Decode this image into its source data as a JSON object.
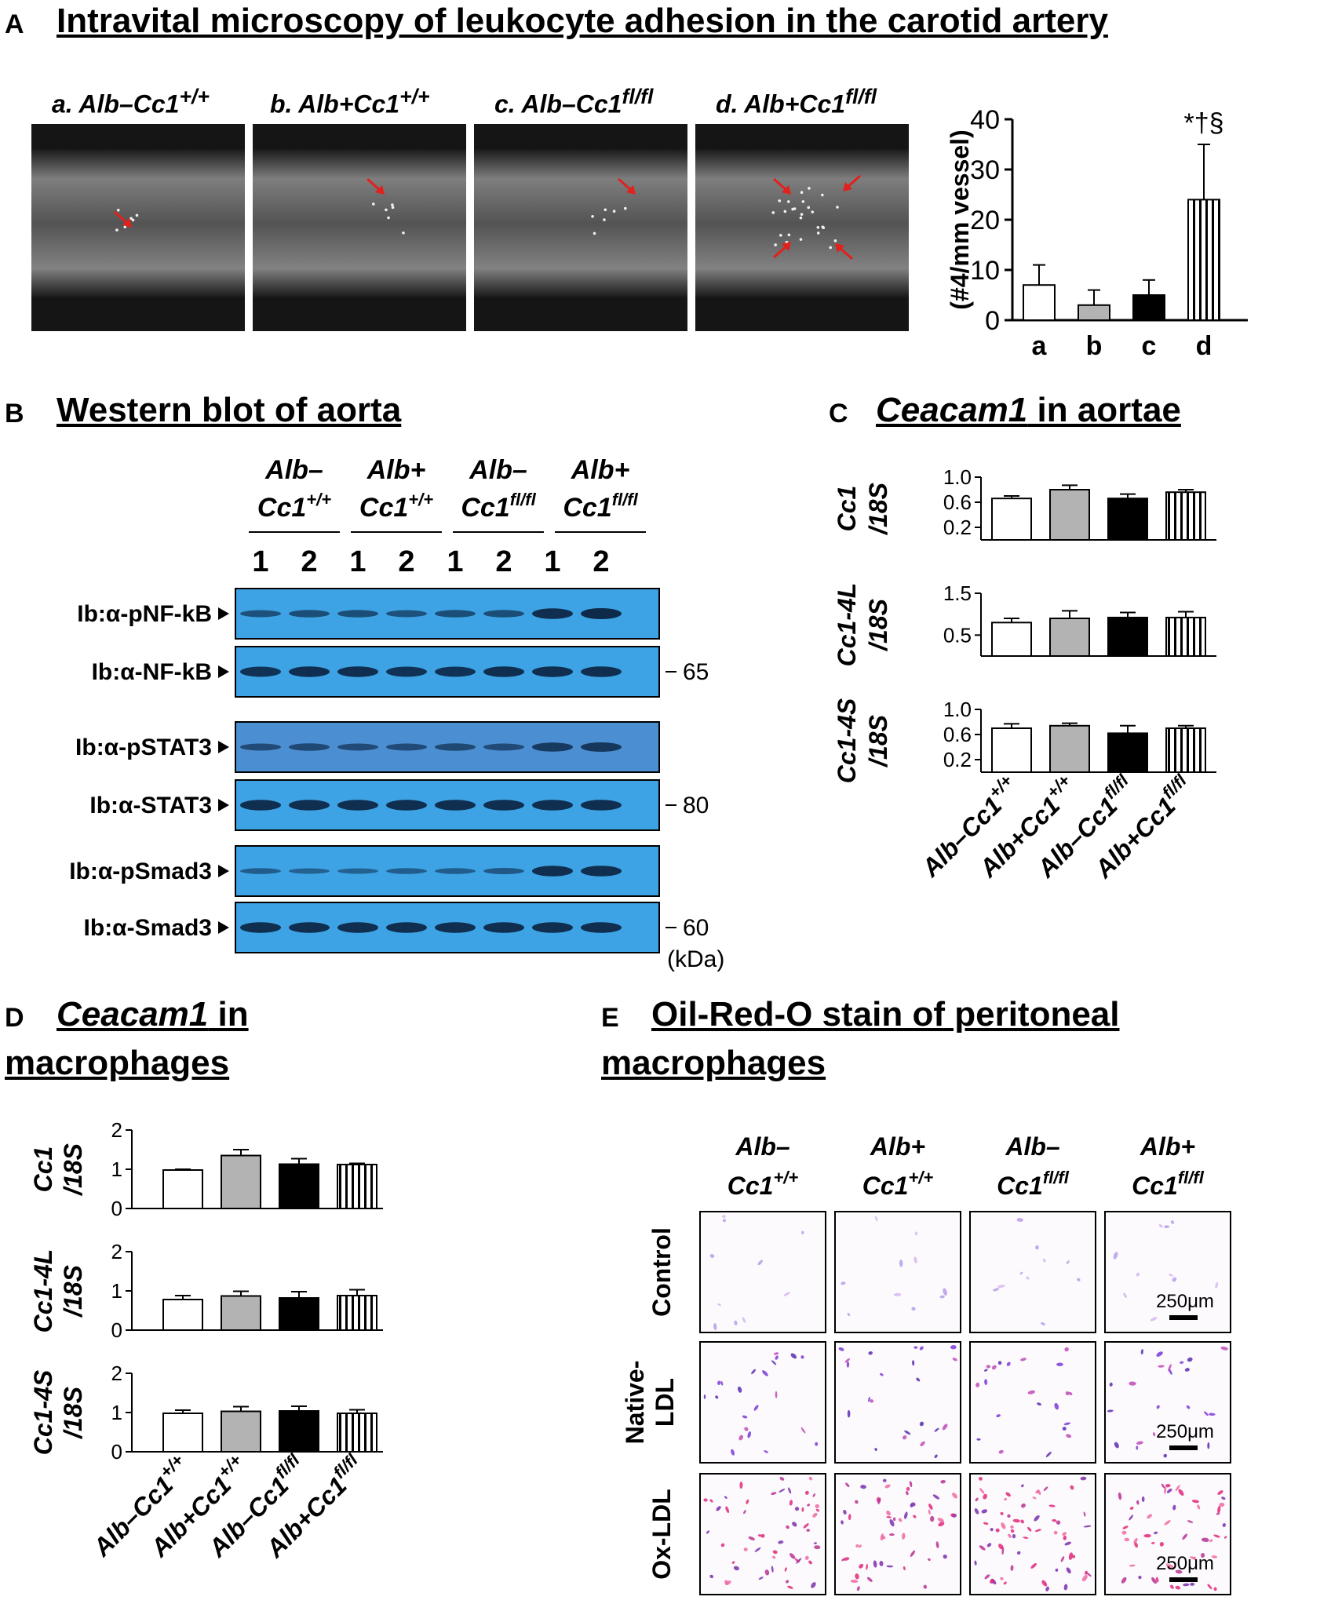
{
  "panelA": {
    "letter": "A",
    "title": "Intravital microscopy of leukocyte adhesion in the carotid artery",
    "images": [
      {
        "prefix": "a. Alb–Cc1",
        "sup": "+/+",
        "arrows": 1
      },
      {
        "prefix": "b. Alb+Cc1",
        "sup": "+/+",
        "arrows": 1
      },
      {
        "prefix": "c. Alb–Cc1",
        "sup": "fl/fl",
        "arrows": 1
      },
      {
        "prefix": "d. Alb+Cc1",
        "sup": "fl/fl",
        "arrows": 4
      }
    ],
    "chart_data": {
      "type": "bar",
      "categories": [
        "a",
        "b",
        "c",
        "d"
      ],
      "values": [
        7,
        3,
        5,
        24
      ],
      "errors": [
        4,
        3,
        3,
        11
      ],
      "ylabel": "(#4/mm vessel)",
      "ylim": [
        0,
        40
      ],
      "yticks": [
        0,
        10,
        20,
        30,
        40
      ],
      "annotation": "*†§",
      "fills": [
        "white",
        "#b3b3b3",
        "black",
        "stripes"
      ]
    }
  },
  "panelB": {
    "letter": "B",
    "title": "Western blot of aorta",
    "groups": [
      {
        "line1": "Alb–",
        "line2": "Cc1",
        "sup": "+/+"
      },
      {
        "line1": "Alb+",
        "line2": "Cc1",
        "sup": "+/+"
      },
      {
        "line1": "Alb–",
        "line2": "Cc1",
        "sup": "fl/fl"
      },
      {
        "line1": "Alb+",
        "line2": "Cc1",
        "sup": "fl/fl"
      }
    ],
    "lanes": [
      "1",
      "2",
      "1",
      "2",
      "1",
      "2",
      "1",
      "2"
    ],
    "rows": [
      {
        "label": "Ib:α-pNF-kB",
        "mw": "",
        "intensities": [
          0.5,
          0.55,
          0.55,
          0.5,
          0.55,
          0.55,
          0.95,
          1.0
        ]
      },
      {
        "label": "Ib:α-NF-kB",
        "mw": "65",
        "intensities": [
          0.9,
          0.95,
          0.95,
          0.9,
          0.9,
          0.95,
          0.95,
          0.95
        ]
      },
      {
        "label": "Ib:α-pSTAT3",
        "mw": "",
        "intensities": [
          0.5,
          0.55,
          0.5,
          0.5,
          0.55,
          0.5,
          0.75,
          0.8
        ]
      },
      {
        "label": "Ib:α-STAT3",
        "mw": "80",
        "intensities": [
          0.95,
          0.95,
          0.95,
          0.95,
          0.95,
          0.95,
          0.95,
          0.95
        ]
      },
      {
        "label": "Ib:α-pSmad3",
        "mw": "",
        "intensities": [
          0.35,
          0.3,
          0.3,
          0.35,
          0.35,
          0.4,
          0.95,
          0.95
        ]
      },
      {
        "label": "Ib:α-Smad3",
        "mw": "60",
        "intensities": [
          0.95,
          0.95,
          0.95,
          0.95,
          0.95,
          0.95,
          0.95,
          0.95
        ]
      }
    ],
    "mw_unit": "(kDa)"
  },
  "panelC": {
    "letter": "C",
    "title_italic": "Ceacam1",
    "title_rest": " in aortae",
    "chart_data": [
      {
        "type": "bar",
        "ylabel_line1": "Cc1",
        "ylabel_line2": "/18S",
        "yticks": [
          0.2,
          0.6,
          1.0
        ],
        "tick_labels": [
          "0.2",
          "0.6",
          "1.0"
        ],
        "ylim": [
          0,
          1.0
        ],
        "values": [
          0.66,
          0.8,
          0.66,
          0.76
        ],
        "errors": [
          0.04,
          0.07,
          0.07,
          0.04
        ]
      },
      {
        "type": "bar",
        "ylabel_line1": "Cc1-4L",
        "ylabel_line2": "/18S",
        "yticks": [
          0.5,
          1.5
        ],
        "tick_labels": [
          "0.5",
          "1.5"
        ],
        "ylim": [
          0,
          1.5
        ],
        "values": [
          0.8,
          0.9,
          0.92,
          0.92
        ],
        "errors": [
          0.1,
          0.18,
          0.12,
          0.14
        ]
      },
      {
        "type": "bar",
        "ylabel_line1": "Cc1-4S",
        "ylabel_line2": "/18S",
        "yticks": [
          0.2,
          0.6,
          1.0
        ],
        "tick_labels": [
          "0.2",
          "0.6",
          "1.0"
        ],
        "ylim": [
          0,
          1.0
        ],
        "values": [
          0.7,
          0.74,
          0.62,
          0.7
        ],
        "errors": [
          0.07,
          0.04,
          0.12,
          0.04
        ]
      }
    ],
    "categories": [
      {
        "prefix": "Alb–Cc1",
        "sup": "+/+"
      },
      {
        "prefix": "Alb+Cc1",
        "sup": "+/+"
      },
      {
        "prefix": "Alb–Cc1",
        "sup": "fl/fl"
      },
      {
        "prefix": "Alb+Cc1",
        "sup": "fl/fl"
      }
    ]
  },
  "panelD": {
    "letter": "D",
    "title_italic": "Ceacam1",
    "title_rest": " in",
    "title_line2": "macrophages",
    "chart_data": [
      {
        "type": "bar",
        "ylabel_line1": "Cc1",
        "ylabel_line2": "/18S",
        "yticks": [
          0,
          1,
          2
        ],
        "tick_labels": [
          "0",
          "1",
          "2"
        ],
        "ylim": [
          0,
          2
        ],
        "values": [
          0.98,
          1.35,
          1.13,
          1.12
        ],
        "errors": [
          0.02,
          0.15,
          0.14,
          0.03
        ]
      },
      {
        "type": "bar",
        "ylabel_line1": "Cc1-4L",
        "ylabel_line2": "/18S",
        "yticks": [
          0,
          1,
          2
        ],
        "tick_labels": [
          "0",
          "1",
          "2"
        ],
        "ylim": [
          0,
          2
        ],
        "values": [
          0.78,
          0.87,
          0.82,
          0.88
        ],
        "errors": [
          0.1,
          0.12,
          0.16,
          0.15
        ]
      },
      {
        "type": "bar",
        "ylabel_line1": "Cc1-4S",
        "ylabel_line2": "/18S",
        "yticks": [
          0,
          1,
          2
        ],
        "tick_labels": [
          "0",
          "1",
          "2"
        ],
        "ylim": [
          0,
          2
        ],
        "values": [
          0.98,
          1.03,
          1.04,
          0.98
        ],
        "errors": [
          0.08,
          0.12,
          0.12,
          0.09
        ]
      }
    ],
    "categories": [
      {
        "prefix": "Alb–Cc1",
        "sup": "+/+"
      },
      {
        "prefix": "Alb+Cc1",
        "sup": "+/+"
      },
      {
        "prefix": "Alb–Cc1",
        "sup": "fl/fl"
      },
      {
        "prefix": "Alb+Cc1",
        "sup": "fl/fl"
      }
    ]
  },
  "panelE": {
    "letter": "E",
    "title_line1": "Oil-Red-O stain of peritoneal",
    "title_line2": "macrophages",
    "groups": [
      {
        "line1": "Alb–",
        "line2": "Cc1",
        "sup": "+/+"
      },
      {
        "line1": "Alb+",
        "line2": "Cc1",
        "sup": "+/+"
      },
      {
        "line1": "Alb–",
        "line2": "Cc1",
        "sup": "fl/fl"
      },
      {
        "line1": "Alb+",
        "line2": "Cc1",
        "sup": "fl/fl"
      }
    ],
    "rows": [
      {
        "label": "Control",
        "label_line2": ""
      },
      {
        "label": "Native-",
        "label_line2": "LDL"
      },
      {
        "label": "Ox-LDL",
        "label_line2": ""
      }
    ],
    "scalebar": "250μm"
  },
  "colors": {
    "blot_bg": "#3ea3e4",
    "band": "#0d2a4a",
    "arrow": "#e3201b",
    "gray_bar": "#b3b3b3"
  }
}
